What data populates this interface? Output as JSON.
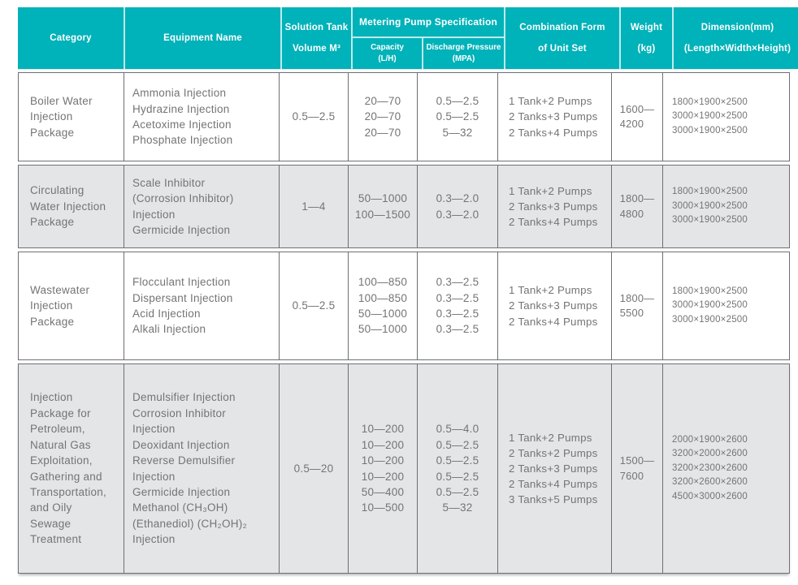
{
  "colors": {
    "accent_teal": "#00b2b9",
    "header_text": "#ffffff",
    "alt_row_bg": "#e4e5e7",
    "border_gray": "#6e6f72",
    "body_text": "#737477"
  },
  "table": {
    "header": {
      "category": "Category",
      "equipment": "Equipment Name",
      "tank": "Solution Tank\nVolume M³",
      "pump_spec": "Metering Pump Specification",
      "capacity": "Capacity\n(L/H)",
      "discharge": "Discharge Pressure\n(MPA)",
      "combination": "Combination Form\nof Unit Set",
      "weight": "Weight\n(kg)",
      "dimension": "Dimension(mm)\n(Length×Width×Height)"
    },
    "rows": [
      {
        "category": "Boiler Water\nInjection\nPackage",
        "equipment": "Ammonia Injection\nHydrazine Injection\nAcetoxime Injection\nPhosphate Injection",
        "tank": "0.5—2.5",
        "capacity": "20—70\n20—70\n20—70",
        "discharge": "0.5—2.5\n0.5—2.5\n5—32",
        "combination": "1 Tank+2 Pumps\n2 Tanks+3 Pumps\n2 Tanks+4 Pumps",
        "weight": "1600—\n4200",
        "dimension": "1800×1900×2500\n3000×1900×2500\n3000×1900×2500"
      },
      {
        "category": "Circulating\nWater Injection\nPackage",
        "equipment": "Scale Inhibitor\n(Corrosion Inhibitor)\nInjection\nGermicide Injection",
        "tank": "1—4",
        "capacity": "50—1000\n100—1500",
        "discharge": "0.3—2.0\n0.3—2.0",
        "combination": "1 Tank+2 Pumps\n2 Tanks+3 Pumps\n2 Tanks+4 Pumps",
        "weight": "1800—\n4800",
        "dimension": "1800×1900×2500\n3000×1900×2500\n3000×1900×2500"
      },
      {
        "category": "Wastewater\nInjection\nPackage",
        "equipment": "Flocculant Injection\nDispersant Injection\nAcid Injection\nAlkali Injection",
        "tank": "0.5—2.5",
        "capacity": "100—850\n100—850\n50—1000\n50—1000",
        "discharge": "0.3—2.5\n0.3—2.5\n0.3—2.5\n0.3—2.5",
        "combination": "1 Tank+2 Pumps\n2 Tanks+3 Pumps\n2 Tanks+4 Pumps",
        "weight": "1800—\n5500",
        "dimension": "1800×1900×2500\n3000×1900×2500\n3000×1900×2500"
      },
      {
        "category": "Injection\nPackage for\nPetroleum,\nNatural Gas\nExploitation,\nGathering and\nTransportation,\nand Oily\nSewage\nTreatment",
        "equipment": "Demulsifier Injection\nCorrosion Inhibitor\nInjection\nDeoxidant Injection\nReverse Demulsifier\nInjection\nGermicide Injection\nMethanol (CH₃OH)\n(Ethanediol) (CH₂OH)₂\nInjection",
        "tank": "0.5—20",
        "capacity": "10—200\n10—200\n10—200\n10—200\n50—400\n10—500",
        "discharge": "0.5—4.0\n0.5—2.5\n0.5—2.5\n0.5—2.5\n0.5—2.5\n5—32",
        "combination": "1 Tank+2 Pumps\n2 Tanks+2 Pumps\n2 Tanks+3 Pumps\n2 Tanks+4 Pumps\n3 Tanks+5 Pumps",
        "weight": "1500—\n7600",
        "dimension": "2000×1900×2600\n3200×2000×2600\n3200×2300×2600\n3200×2600×2600\n4500×3000×2600"
      }
    ]
  }
}
